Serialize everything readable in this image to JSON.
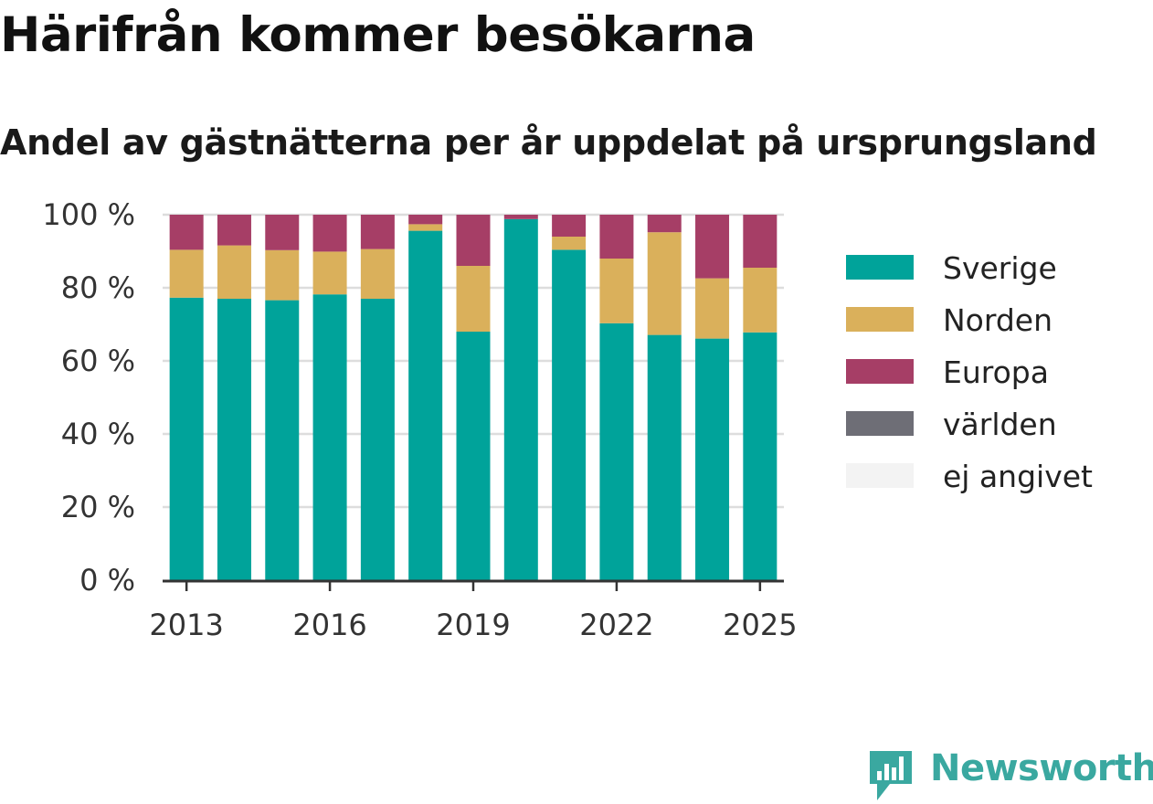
{
  "header": {
    "title": "Härifrån kommer besökarna",
    "subtitle": "Andel av gästnätterna per år uppdelat på ursprungsland"
  },
  "brand": {
    "name": "Newsworthy",
    "color": "#3aa8a0"
  },
  "chart_data": {
    "type": "bar",
    "stacked": true,
    "categories": [
      "2013",
      "2014",
      "2015",
      "2016",
      "2017",
      "2018",
      "2019",
      "2020",
      "2021",
      "2022",
      "2023",
      "2024",
      "2025"
    ],
    "x_tick_labels": [
      "2013",
      "2016",
      "2019",
      "2022",
      "2025"
    ],
    "y_tick_labels": [
      "0 %",
      "20 %",
      "40 %",
      "60 %",
      "80 %",
      "100 %"
    ],
    "ylim": [
      0,
      100
    ],
    "grid": true,
    "legend_position": "right",
    "series": [
      {
        "name": "Sverige",
        "color": "#00a39a",
        "values": [
          77.3,
          77.0,
          76.6,
          78.2,
          77.0,
          95.6,
          68.0,
          98.8,
          90.4,
          70.3,
          67.1,
          66.1,
          67.8
        ]
      },
      {
        "name": "Norden",
        "color": "#dab05b",
        "values": [
          13.1,
          14.6,
          13.7,
          11.7,
          13.6,
          1.8,
          18.0,
          0.0,
          3.6,
          17.7,
          28.1,
          16.5,
          17.7
        ]
      },
      {
        "name": "Europa",
        "color": "#a63e66",
        "values": [
          9.6,
          8.4,
          9.7,
          10.1,
          9.4,
          2.6,
          14.0,
          1.2,
          6.0,
          12.0,
          4.8,
          17.4,
          14.5
        ]
      },
      {
        "name": "världen",
        "color": "#6e6e76",
        "values": [
          0,
          0,
          0,
          0,
          0,
          0,
          0,
          0,
          0,
          0,
          0,
          0,
          0
        ]
      },
      {
        "name": "ej angivet",
        "color": "#f3f3f3",
        "values": [
          0,
          0,
          0,
          0,
          0,
          0,
          0,
          0,
          0,
          0,
          0,
          0,
          0
        ]
      }
    ]
  }
}
